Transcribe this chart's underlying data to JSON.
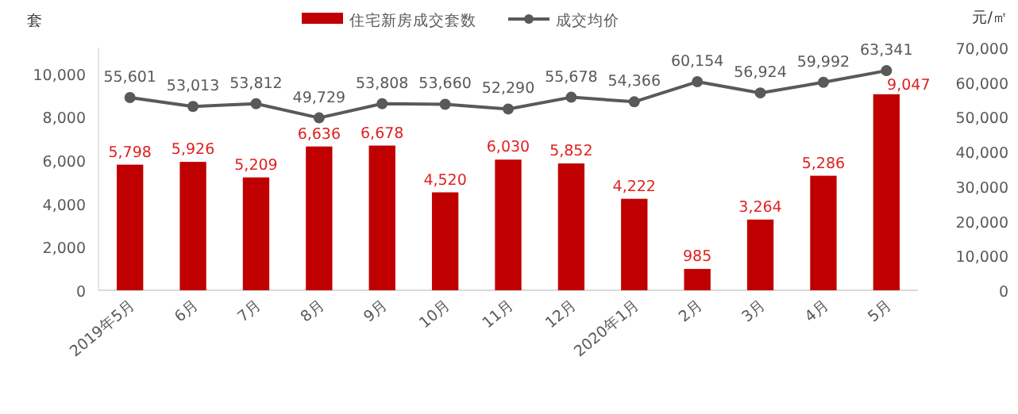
{
  "chart_data": {
    "type": "bar",
    "ylabel": "套",
    "y2label": "元/㎡",
    "categories": [
      "2019年5月",
      "6月",
      "7月",
      "8月",
      "9月",
      "10月",
      "11月",
      "12月",
      "2020年1月",
      "2月",
      "3月",
      "4月",
      "5月"
    ],
    "series": [
      {
        "name": "住宅新房成交套数",
        "color": "#c00000",
        "values": [
          5798,
          5926,
          5209,
          6636,
          6678,
          4520,
          6030,
          5852,
          4222,
          985,
          3264,
          5286,
          9047
        ],
        "value_labels": [
          "5,798",
          "5,926",
          "5,209",
          "6,636",
          "6,678",
          "4,520",
          "6,030",
          "5,852",
          "4,222",
          "985",
          "3,264",
          "5,286",
          "9,047"
        ]
      },
      {
        "name": "成交均价",
        "type": "line",
        "axis": "y2",
        "color": "#595959",
        "marker": "circle",
        "values": [
          55601,
          53013,
          53812,
          49729,
          53808,
          53660,
          52290,
          55678,
          54366,
          60154,
          56924,
          59992,
          63341
        ],
        "value_labels": [
          "55,601",
          "53,013",
          "53,812",
          "49,729",
          "53,808",
          "53,660",
          "52,290",
          "55,678",
          "54,366",
          "60,154",
          "56,924",
          "59,992",
          "63,341"
        ]
      }
    ],
    "ylim": [
      0,
      11200
    ],
    "yticks": [
      {
        "value": 0,
        "label": "0"
      },
      {
        "value": 2000,
        "label": "2,000"
      },
      {
        "value": 4000,
        "label": "4,000"
      },
      {
        "value": 6000,
        "label": "6,000"
      },
      {
        "value": 8000,
        "label": "8,000"
      },
      {
        "value": 10000,
        "label": "10,000"
      }
    ],
    "y2lim": [
      0,
      70000
    ],
    "y2ticks": [
      {
        "value": 0,
        "label": "0"
      },
      {
        "value": 10000,
        "label": "10,000"
      },
      {
        "value": 20000,
        "label": "20,000"
      },
      {
        "value": 30000,
        "label": "30,000"
      },
      {
        "value": 40000,
        "label": "40,000"
      },
      {
        "value": 50000,
        "label": "50,000"
      },
      {
        "value": 60000,
        "label": "60,000"
      },
      {
        "value": 70000,
        "label": "70,000"
      }
    ],
    "legend": "top",
    "grid": false
  }
}
